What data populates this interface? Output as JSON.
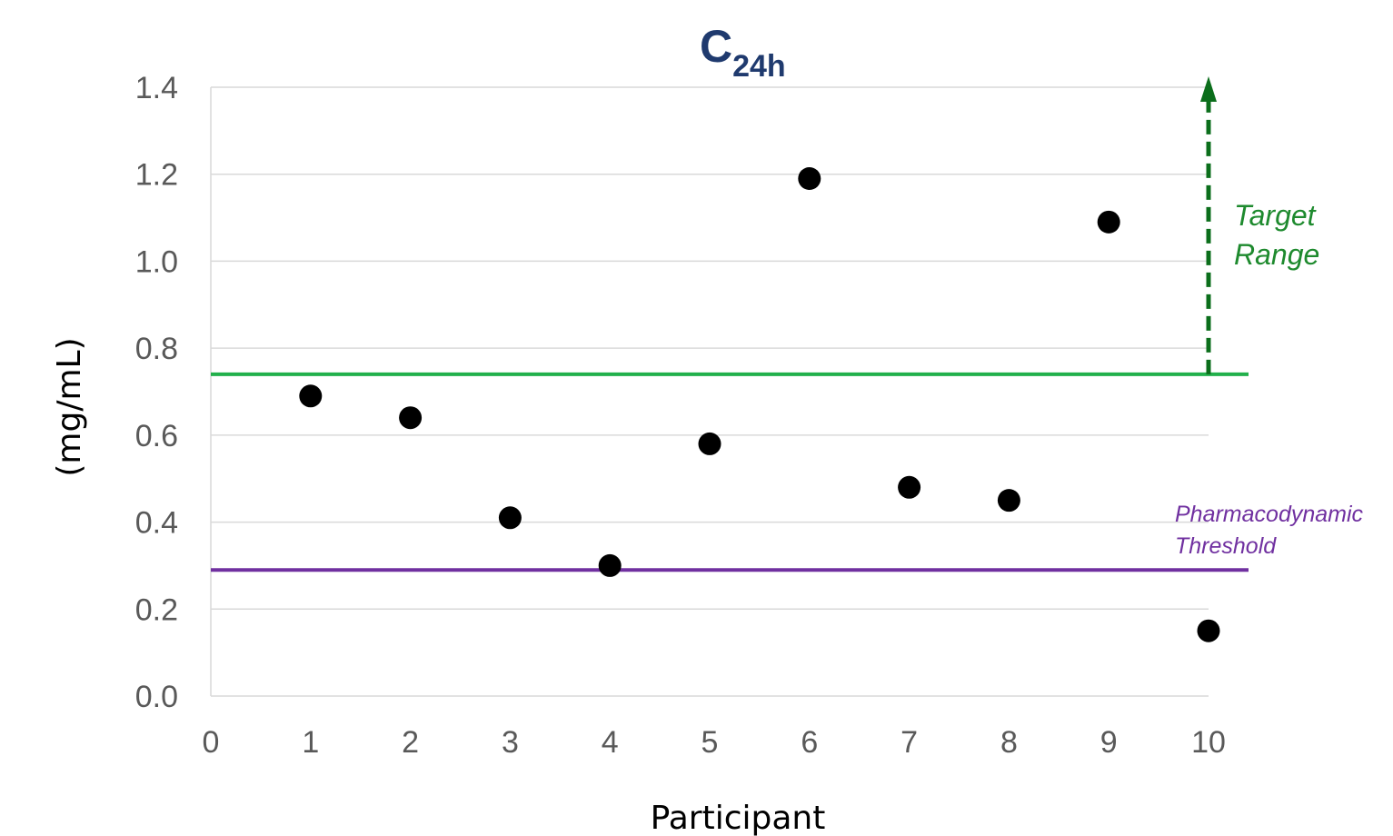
{
  "chart_data": {
    "type": "scatter",
    "title": "C",
    "title_subscript": "24h",
    "xlabel": "Participant",
    "ylabel": "(mg/mL)",
    "xlim": [
      0,
      10
    ],
    "ylim": [
      0,
      1.4
    ],
    "x_ticks": [
      "0",
      "1",
      "2",
      "3",
      "4",
      "5",
      "6",
      "7",
      "8",
      "9",
      "10"
    ],
    "y_ticks": [
      "0.0",
      "0.2",
      "0.4",
      "0.6",
      "0.8",
      "1.0",
      "1.2",
      "1.4"
    ],
    "grid": "horizontal",
    "points": [
      {
        "x": 1,
        "y": 0.69
      },
      {
        "x": 2,
        "y": 0.64
      },
      {
        "x": 3,
        "y": 0.41
      },
      {
        "x": 4,
        "y": 0.3
      },
      {
        "x": 5,
        "y": 0.58
      },
      {
        "x": 6,
        "y": 1.19
      },
      {
        "x": 7,
        "y": 0.48
      },
      {
        "x": 8,
        "y": 0.45
      },
      {
        "x": 9,
        "y": 1.09
      },
      {
        "x": 10,
        "y": 0.15
      }
    ],
    "reference_lines": [
      {
        "label_lines": [
          "Target",
          "Range"
        ],
        "y": 0.74,
        "color": "#22b04b"
      },
      {
        "label_lines": [
          "Pharmacodynamic",
          "Threshold"
        ],
        "y": 0.29,
        "color": "#7030a0"
      }
    ],
    "target_arrow": {
      "x": 10,
      "from": 0.74,
      "to": 1.4,
      "color": "#0b6e1b"
    },
    "marker_color": "#000000",
    "grid_color": "#d9d9d9"
  }
}
